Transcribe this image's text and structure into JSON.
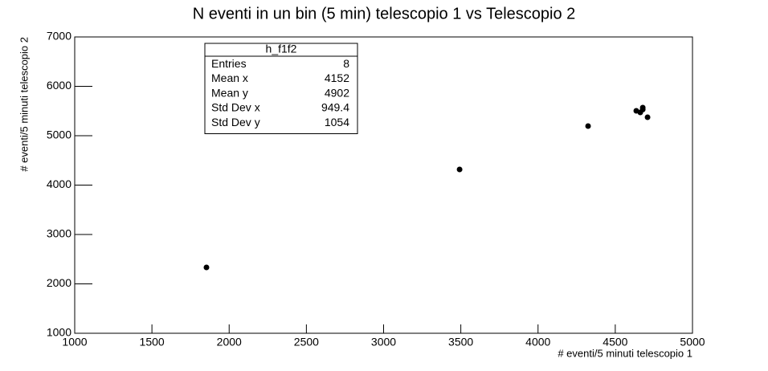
{
  "chart_data": {
    "type": "scatter",
    "title": "N eventi in un bin (5 min) telescopio 1 vs Telescopio 2",
    "x_label": "# eventi/5 minuti telescopio 1",
    "y_label": "# eventi/5 minuti telescopio 2",
    "x": [
      1853,
      3492,
      4324,
      4636,
      4678,
      4678,
      4662,
      4709
    ],
    "series": [
      {
        "color": "#000000",
        "values": [
          2333,
          4317,
          5195,
          5504,
          5569,
          5530,
          5472,
          5374
        ]
      }
    ],
    "xlim": [
      1000,
      5000
    ],
    "xticks": [
      1000,
      1500,
      2000,
      2500,
      3000,
      3500,
      4000,
      4500,
      5000
    ],
    "ylim": [
      1000,
      7000
    ],
    "yticks": [
      1000,
      2000,
      3000,
      4000,
      5000,
      6000,
      7000
    ],
    "grid": false
  },
  "stats_box": {
    "title": "h_f1f2",
    "rows": [
      [
        "Entries",
        "8"
      ],
      [
        "Mean x",
        "4152"
      ],
      [
        "Mean y",
        "4902"
      ],
      [
        "Std Dev x",
        "949.4"
      ],
      [
        "Std Dev y",
        "1054"
      ]
    ]
  }
}
